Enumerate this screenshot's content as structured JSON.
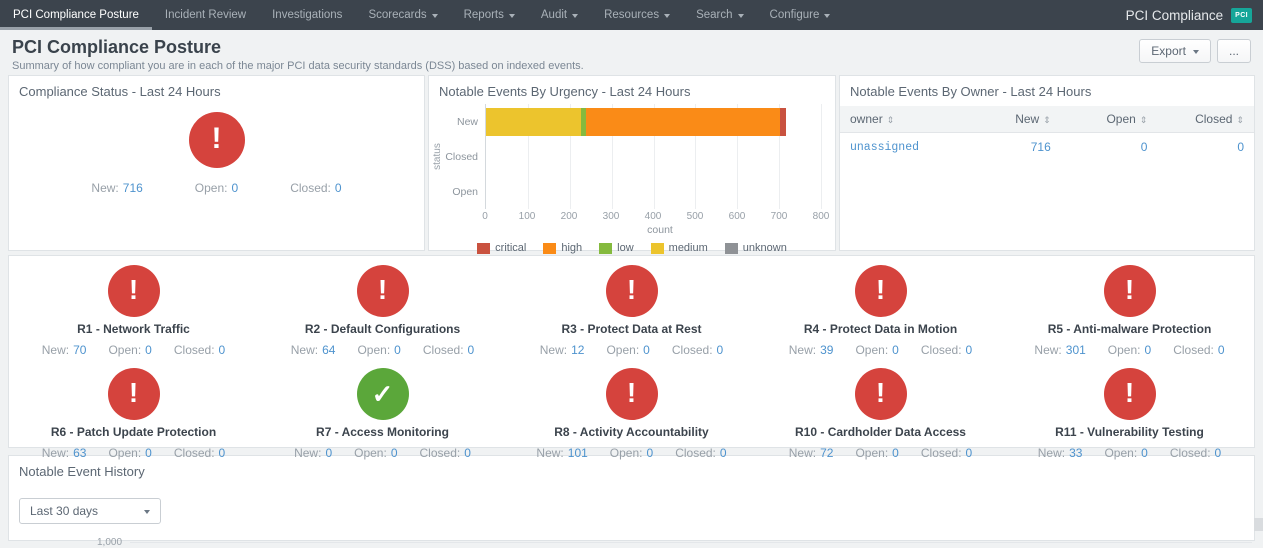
{
  "nav": {
    "items": [
      {
        "label": "PCI Compliance Posture",
        "active": true,
        "caret": false
      },
      {
        "label": "Incident Review",
        "active": false,
        "caret": false
      },
      {
        "label": "Investigations",
        "active": false,
        "caret": false
      },
      {
        "label": "Scorecards",
        "active": false,
        "caret": true
      },
      {
        "label": "Reports",
        "active": false,
        "caret": true
      },
      {
        "label": "Audit",
        "active": false,
        "caret": true
      },
      {
        "label": "Resources",
        "active": false,
        "caret": true
      },
      {
        "label": "Search",
        "active": false,
        "caret": true
      },
      {
        "label": "Configure",
        "active": false,
        "caret": true
      }
    ],
    "app_title": "PCI Compliance",
    "app_badge": "PCI"
  },
  "header": {
    "title": "PCI Compliance Posture",
    "subtitle": "Summary of how compliant you are in each of the major PCI data security standards (DSS) based on indexed events.",
    "export_label": "Export",
    "more_label": "..."
  },
  "panels": {
    "compliance_status": {
      "title": "Compliance Status - Last 24 Hours",
      "icon": "exclamation",
      "stats": [
        {
          "label": "New:",
          "value": "716"
        },
        {
          "label": "Open:",
          "value": "0"
        },
        {
          "label": "Closed:",
          "value": "0"
        }
      ]
    },
    "owner_table": {
      "title": "Notable Events By Owner - Last 24 Hours",
      "columns": [
        "owner",
        "New",
        "Open",
        "Closed"
      ],
      "rows": [
        {
          "cells": [
            "unassigned",
            "716",
            "0",
            "0"
          ]
        }
      ]
    },
    "history": {
      "title": "Notable Event History",
      "time_range": "Last 30 days",
      "y_axis_tick": "1,000"
    }
  },
  "chart_data": {
    "type": "bar",
    "stacked": true,
    "orientation": "horizontal",
    "title": "Notable Events By Urgency - Last 24 Hours",
    "categories": [
      "New",
      "Closed",
      "Open"
    ],
    "series": [
      {
        "name": "critical",
        "color": "#c9523f",
        "values": [
          14,
          0,
          0
        ]
      },
      {
        "name": "high",
        "color": "#fa8b17",
        "values": [
          462,
          0,
          0
        ]
      },
      {
        "name": "low",
        "color": "#85ba3e",
        "values": [
          12,
          0,
          0
        ]
      },
      {
        "name": "medium",
        "color": "#ecc42d",
        "values": [
          228,
          0,
          0
        ]
      },
      {
        "name": "unknown",
        "color": "#8f9296",
        "values": [
          0,
          0,
          0
        ]
      }
    ],
    "stack_order": [
      "medium",
      "low",
      "high",
      "critical",
      "unknown"
    ],
    "xlabel": "count",
    "ylabel": "status",
    "xlim": [
      0,
      800
    ],
    "xticks": [
      0,
      100,
      200,
      300,
      400,
      500,
      600,
      700,
      800
    ],
    "grid": "vertical",
    "legend_position": "bottom"
  },
  "requirements": [
    {
      "title": "R1 - Network Traffic",
      "icon": "exclamation",
      "stats": [
        {
          "label": "New:",
          "value": "70"
        },
        {
          "label": "Open:",
          "value": "0"
        },
        {
          "label": "Closed:",
          "value": "0"
        }
      ]
    },
    {
      "title": "R2 - Default Configurations",
      "icon": "exclamation",
      "stats": [
        {
          "label": "New:",
          "value": "64"
        },
        {
          "label": "Open:",
          "value": "0"
        },
        {
          "label": "Closed:",
          "value": "0"
        }
      ]
    },
    {
      "title": "R3 - Protect Data at Rest",
      "icon": "exclamation",
      "stats": [
        {
          "label": "New:",
          "value": "12"
        },
        {
          "label": "Open:",
          "value": "0"
        },
        {
          "label": "Closed:",
          "value": "0"
        }
      ]
    },
    {
      "title": "R4 - Protect Data in Motion",
      "icon": "exclamation",
      "stats": [
        {
          "label": "New:",
          "value": "39"
        },
        {
          "label": "Open:",
          "value": "0"
        },
        {
          "label": "Closed:",
          "value": "0"
        }
      ]
    },
    {
      "title": "R5 - Anti-malware Protection",
      "icon": "exclamation",
      "stats": [
        {
          "label": "New:",
          "value": "301"
        },
        {
          "label": "Open:",
          "value": "0"
        },
        {
          "label": "Closed:",
          "value": "0"
        }
      ]
    },
    {
      "title": "R6 - Patch Update Protection",
      "icon": "exclamation",
      "stats": [
        {
          "label": "New:",
          "value": "63"
        },
        {
          "label": "Open:",
          "value": "0"
        },
        {
          "label": "Closed:",
          "value": "0"
        }
      ]
    },
    {
      "title": "R7 - Access Monitoring",
      "icon": "check",
      "stats": [
        {
          "label": "New:",
          "value": "0"
        },
        {
          "label": "Open:",
          "value": "0"
        },
        {
          "label": "Closed:",
          "value": "0"
        }
      ]
    },
    {
      "title": "R8 - Activity Accountability",
      "icon": "exclamation",
      "stats": [
        {
          "label": "New:",
          "value": "101"
        },
        {
          "label": "Open:",
          "value": "0"
        },
        {
          "label": "Closed:",
          "value": "0"
        }
      ]
    },
    {
      "title": "R10 - Cardholder Data Access",
      "icon": "exclamation",
      "stats": [
        {
          "label": "New:",
          "value": "72"
        },
        {
          "label": "Open:",
          "value": "0"
        },
        {
          "label": "Closed:",
          "value": "0"
        }
      ]
    },
    {
      "title": "R11 - Vulnerability Testing",
      "icon": "exclamation",
      "stats": [
        {
          "label": "New:",
          "value": "33"
        },
        {
          "label": "Open:",
          "value": "0"
        },
        {
          "label": "Closed:",
          "value": "0"
        }
      ]
    }
  ],
  "colors": {
    "nav_bg": "#3c444d",
    "badge": "#16a699",
    "alert": "#d5433d",
    "ok": "#5ba73a",
    "link": "#4e93ce"
  }
}
